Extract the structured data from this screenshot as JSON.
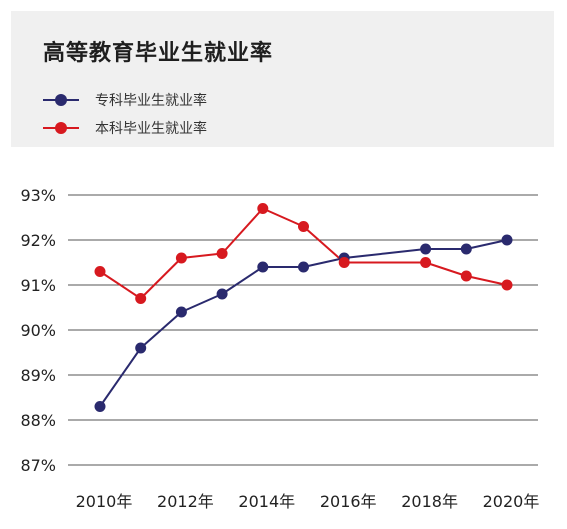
{
  "colors": {
    "background": "#ffffff",
    "header_bg": "#f0f0f0",
    "series_1": "#2a2a6e",
    "series_2": "#d7191f",
    "grid": "#555555"
  },
  "chart_data": {
    "type": "line",
    "title": "高等教育毕业生就业率",
    "x": [
      2010,
      2011,
      2012,
      2013,
      2014,
      2015,
      2016,
      2017,
      2018,
      2019,
      2020
    ],
    "x_tick_values": [
      2010,
      2012,
      2014,
      2016,
      2018,
      2020
    ],
    "x_tick_labels": [
      "2010年",
      "2012年",
      "2014年",
      "2016年",
      "2018年",
      "2020年"
    ],
    "y_tick_values": [
      87,
      88,
      89,
      90,
      91,
      92,
      93
    ],
    "y_tick_labels": [
      "87%",
      "88%",
      "89%",
      "90%",
      "91%",
      "92%",
      "93%"
    ],
    "ylim": [
      87,
      93
    ],
    "grid": true,
    "legend_position": "top-left",
    "series": [
      {
        "name": "专科毕业生就业率",
        "color": "#2a2a6e",
        "x": [
          2010,
          2011,
          2012,
          2013,
          2014,
          2015,
          2016,
          2017,
          2018,
          2019,
          2020
        ],
        "values": [
          88.3,
          89.6,
          90.4,
          90.8,
          91.4,
          91.4,
          91.6,
          91.7,
          91.8,
          91.8,
          92.0
        ],
        "markers": [
          true,
          true,
          true,
          true,
          true,
          true,
          true,
          false,
          true,
          true,
          true
        ]
      },
      {
        "name": "本科毕业生就业率",
        "color": "#d7191f",
        "x": [
          2010,
          2011,
          2012,
          2013,
          2014,
          2015,
          2016,
          2018,
          2019,
          2020
        ],
        "values": [
          91.3,
          90.7,
          91.6,
          91.7,
          92.7,
          92.3,
          91.5,
          91.5,
          91.2,
          91.0
        ],
        "markers": [
          true,
          true,
          true,
          true,
          true,
          true,
          true,
          true,
          true,
          true
        ]
      }
    ]
  }
}
